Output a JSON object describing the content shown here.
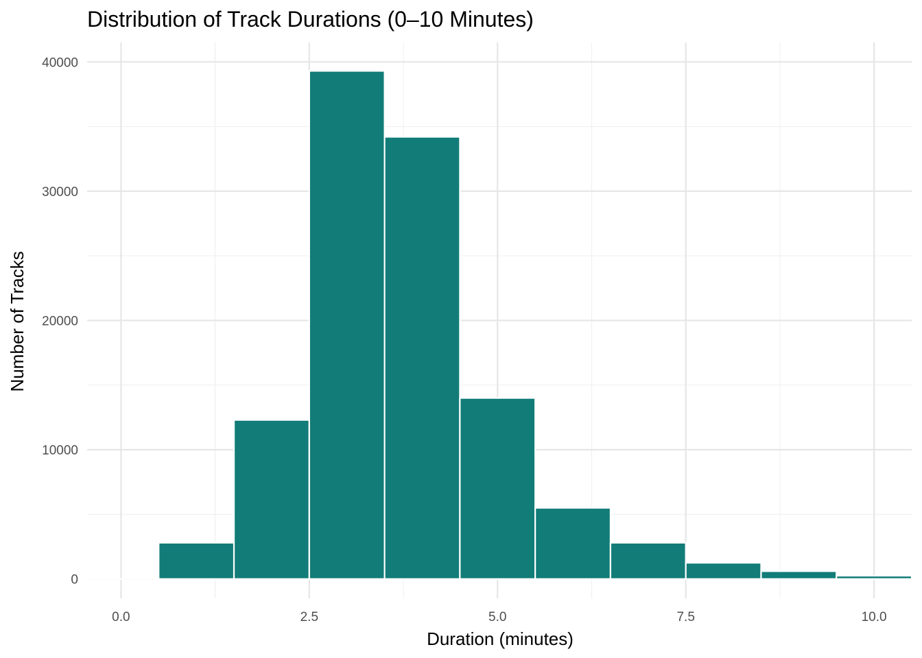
{
  "chart_data": {
    "type": "bar",
    "title": "Distribution of Track Durations (0–10 Minutes)",
    "xlabel": "Duration (minutes)",
    "ylabel": "Number of Tracks",
    "xlim": [
      -0.45,
      10.5
    ],
    "ylim": [
      -1500,
      41500
    ],
    "x_ticks": [
      0,
      2.5,
      5,
      7.5,
      10
    ],
    "x_tick_labels": [
      "0.0",
      "2.5",
      "5.0",
      "7.5",
      "10.0"
    ],
    "y_ticks": [
      0,
      10000,
      20000,
      30000,
      40000
    ],
    "y_tick_labels": [
      "0",
      "10000",
      "20000",
      "30000",
      "40000"
    ],
    "bin_width": 1,
    "bins": [
      {
        "x0": -0.5,
        "x1": 0.5,
        "count": 0
      },
      {
        "x0": 0.5,
        "x1": 1.5,
        "count": 2800
      },
      {
        "x0": 1.5,
        "x1": 2.5,
        "count": 12300
      },
      {
        "x0": 2.5,
        "x1": 3.5,
        "count": 39300
      },
      {
        "x0": 3.5,
        "x1": 4.5,
        "count": 34200
      },
      {
        "x0": 4.5,
        "x1": 5.5,
        "count": 14000
      },
      {
        "x0": 5.5,
        "x1": 6.5,
        "count": 5500
      },
      {
        "x0": 6.5,
        "x1": 7.5,
        "count": 2800
      },
      {
        "x0": 7.5,
        "x1": 8.5,
        "count": 1250
      },
      {
        "x0": 8.5,
        "x1": 9.5,
        "count": 600
      },
      {
        "x0": 9.5,
        "x1": 10.5,
        "count": 250
      }
    ],
    "bar_color": "#127c78",
    "bar_outline_color": "#ffffff",
    "grid": true,
    "legend": "none"
  }
}
